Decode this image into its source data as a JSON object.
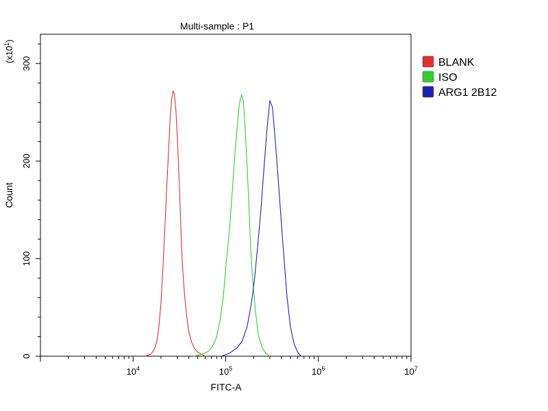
{
  "chart_data": {
    "type": "line",
    "title": "Multi-sample : P1",
    "xlabel": "FITC-A",
    "ylabel": "Count",
    "y_multiplier_label": "(x10",
    "y_multiplier_exponent": "1",
    "y_multiplier_close": ")",
    "x_scale": "log",
    "xlim": [
      1000,
      10000000
    ],
    "ylim": [
      0,
      330
    ],
    "grid": false,
    "legend_position": "right",
    "x_major_ticks": [
      {
        "value": 10000,
        "base": "10",
        "exp": "4"
      },
      {
        "value": 100000,
        "base": "10",
        "exp": "5"
      },
      {
        "value": 1000000,
        "base": "10",
        "exp": "6"
      },
      {
        "value": 10000000,
        "base": "10",
        "exp": "7"
      }
    ],
    "y_major_ticks": [
      {
        "value": 0,
        "label": "0"
      },
      {
        "value": 100,
        "label": "100"
      },
      {
        "value": 200,
        "label": "200"
      },
      {
        "value": 300,
        "label": "300"
      }
    ],
    "series": [
      {
        "name": "BLANK",
        "color": "#e03030",
        "x": [
          13500,
          15500,
          17000,
          18000,
          19000,
          20000,
          21000,
          22000,
          23000,
          24000,
          25000,
          26000,
          27000,
          28000,
          29000,
          30000,
          31000,
          32000,
          33000,
          34000,
          36000,
          38000,
          40000,
          43000,
          46000,
          50000,
          55000,
          60000
        ],
        "y": [
          0,
          2,
          7,
          15,
          30,
          55,
          90,
          130,
          170,
          205,
          240,
          262,
          272,
          268,
          252,
          225,
          195,
          160,
          125,
          95,
          62,
          40,
          25,
          14,
          8,
          4,
          2,
          0
        ]
      },
      {
        "name": "ISO",
        "color": "#30d030",
        "x": [
          45000,
          55000,
          65000,
          72000,
          80000,
          88000,
          95000,
          100000,
          110000,
          118000,
          125000,
          133000,
          140000,
          148000,
          155000,
          162000,
          170000,
          178000,
          185000,
          195000,
          210000,
          225000,
          245000,
          270000,
          300000
        ],
        "y": [
          0,
          2,
          5,
          10,
          20,
          40,
          65,
          90,
          130,
          170,
          205,
          235,
          258,
          268,
          262,
          235,
          195,
          155,
          115,
          80,
          45,
          22,
          10,
          3,
          0
        ]
      },
      {
        "name": "ARG1 2B12",
        "color": "#2020b0",
        "x": [
          90000,
          110000,
          130000,
          150000,
          170000,
          190000,
          205000,
          220000,
          240000,
          260000,
          280000,
          300000,
          320000,
          340000,
          370000,
          400000,
          430000,
          460000,
          500000,
          550000,
          600000,
          650000
        ],
        "y": [
          0,
          3,
          8,
          15,
          30,
          55,
          80,
          110,
          150,
          195,
          235,
          262,
          255,
          225,
          180,
          135,
          95,
          60,
          30,
          12,
          4,
          0
        ]
      }
    ]
  }
}
